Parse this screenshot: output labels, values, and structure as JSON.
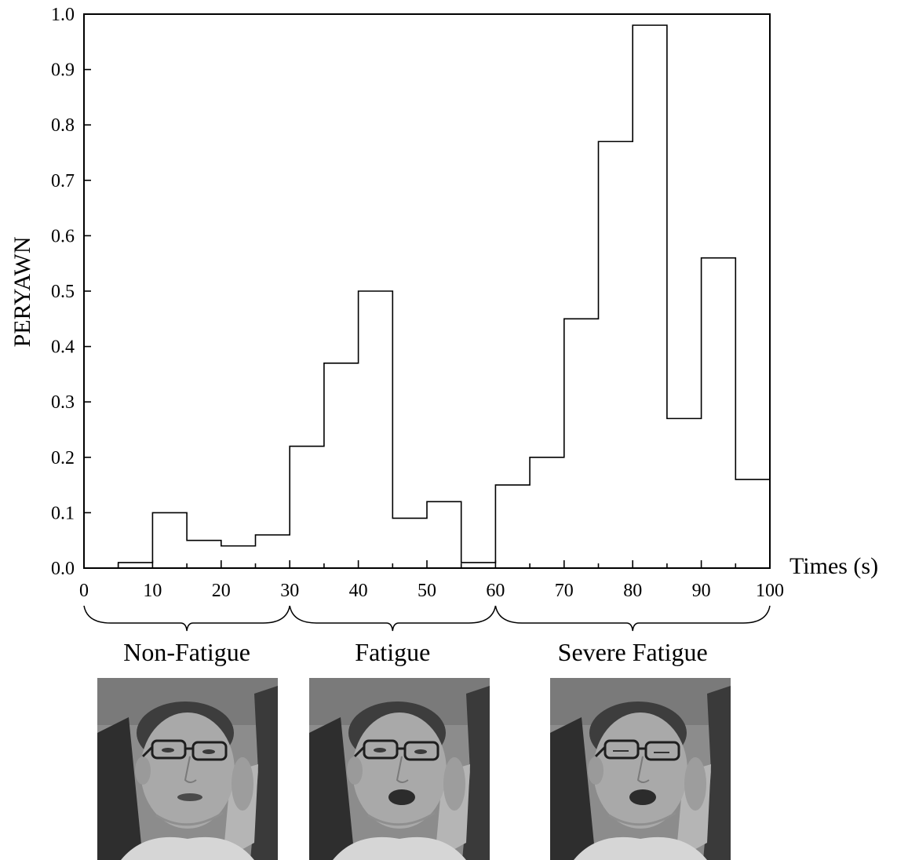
{
  "chart_data": {
    "type": "bar",
    "style": "step-histogram",
    "xlabel": "Times (s)",
    "ylabel": "PERYAWN",
    "xlim": [
      0,
      100
    ],
    "ylim": [
      0,
      1.0
    ],
    "xticks": [
      "0",
      "10",
      "20",
      "30",
      "40",
      "50",
      "60",
      "70",
      "80",
      "90",
      "100"
    ],
    "yticks": [
      "0.0",
      "0.1",
      "0.2",
      "0.3",
      "0.4",
      "0.5",
      "0.6",
      "0.7",
      "0.8",
      "0.9",
      "1.0"
    ],
    "bin_width": 5,
    "x": [
      5,
      10,
      15,
      20,
      25,
      30,
      35,
      40,
      45,
      50,
      55,
      60,
      65,
      70,
      75,
      80,
      85,
      90,
      95
    ],
    "values": [
      0.01,
      0.1,
      0.05,
      0.04,
      0.06,
      0.22,
      0.37,
      0.5,
      0.09,
      0.12,
      0.01,
      0.15,
      0.2,
      0.45,
      0.77,
      0.98,
      0.27,
      0.56,
      0.16
    ],
    "grid": false,
    "annotations": [
      {
        "label": "Non-Fatigue",
        "from": 0,
        "to": 30
      },
      {
        "label": "Fatigue",
        "from": 30,
        "to": 60
      },
      {
        "label": "Severe Fatigue",
        "from": 60,
        "to": 100
      }
    ]
  },
  "photos": [
    {
      "stage": "Non-Fatigue",
      "expression": "mouth-slightly-open"
    },
    {
      "stage": "Fatigue",
      "expression": "yawning"
    },
    {
      "stage": "Severe Fatigue",
      "expression": "yawning-eyes-closed"
    }
  ]
}
